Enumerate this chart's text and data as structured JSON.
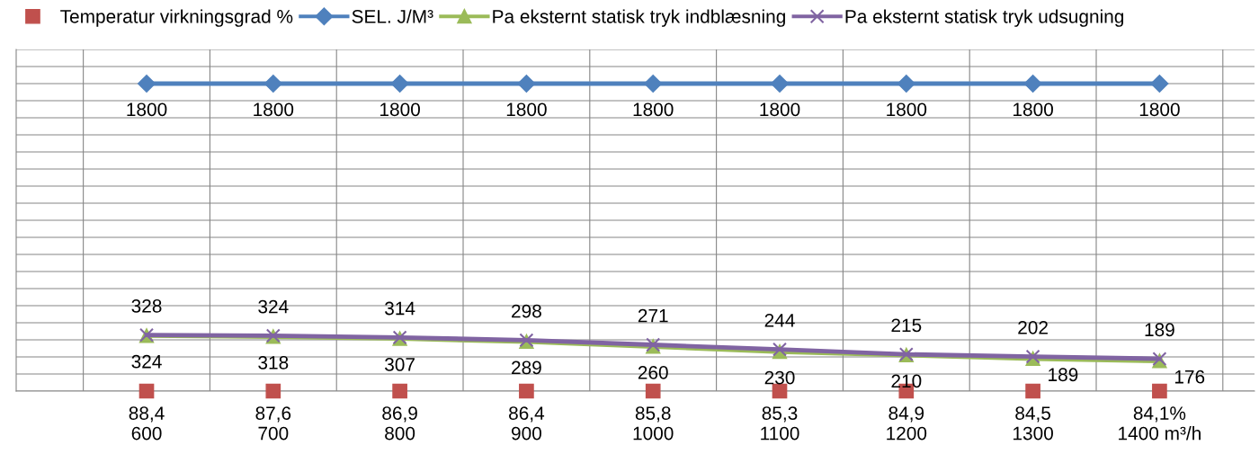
{
  "chart_data": {
    "type": "line",
    "categories": [
      "88,4\n600",
      "87,6\n700",
      "86,9\n800",
      "86,4\n900",
      "85,8\n1000",
      "85,3\n1100",
      "84,9\n1200",
      "84,5\n1300",
      "84,1%\n1400 m³/h"
    ],
    "series": [
      {
        "name": "Temperatur virkningsgrad %",
        "type": "scatter",
        "marker": "square",
        "color": "#c0504d",
        "values": [
          0,
          0,
          0,
          0,
          0,
          0,
          0,
          0,
          0
        ]
      },
      {
        "name": "SEL. J/M³",
        "marker": "diamond",
        "color": "#4f81bd",
        "data_labels": true,
        "values": [
          1800,
          1800,
          1800,
          1800,
          1800,
          1800,
          1800,
          1800,
          1800
        ]
      },
      {
        "name": "Pa eksternt statisk tryk indblæsning",
        "marker": "triangle",
        "color": "#9bbb59",
        "data_labels": true,
        "values": [
          324,
          318,
          307,
          289,
          260,
          230,
          210,
          189,
          176
        ]
      },
      {
        "name": "Pa eksternt statisk tryk udsugning",
        "marker": "cross",
        "color": "#8064a2",
        "data_labels": true,
        "values": [
          328,
          324,
          314,
          298,
          271,
          244,
          215,
          202,
          189
        ]
      }
    ],
    "ylim": [
      0,
      2000
    ],
    "yticks": [
      {
        "value": 0,
        "label": null
      },
      {
        "value": 100,
        "label": null
      },
      {
        "value": 200,
        "label": null
      },
      {
        "value": 300,
        "label": null
      },
      {
        "value": 400,
        "label": null
      },
      {
        "value": 500,
        "label": null
      },
      {
        "value": 600,
        "label": null
      },
      {
        "value": 700,
        "label": null
      },
      {
        "value": 800,
        "label": null
      },
      {
        "value": 900,
        "label": null
      },
      {
        "value": 1000,
        "label": null
      },
      {
        "value": 1100,
        "label": null
      },
      {
        "value": 1200,
        "label": null
      },
      {
        "value": 1300,
        "label": null
      },
      {
        "value": 1400,
        "label": null
      },
      {
        "value": 1500,
        "label": null
      },
      {
        "value": 1600,
        "label": null
      },
      {
        "value": 1700,
        "label": null
      },
      {
        "value": 1800,
        "label": null
      },
      {
        "value": 1900,
        "label": null
      },
      {
        "value": 2000,
        "label": null
      }
    ],
    "tick_labels": "x",
    "grid": true,
    "legend": "top"
  }
}
